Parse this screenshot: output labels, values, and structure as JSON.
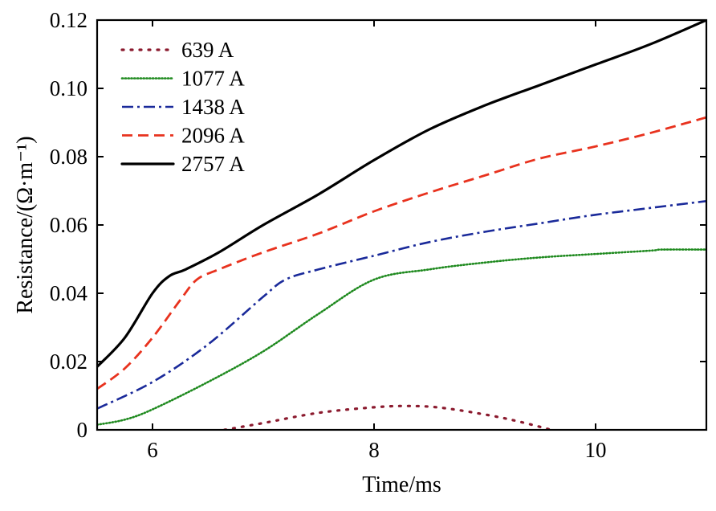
{
  "chart_data": {
    "type": "line",
    "xlabel": "Time/ms",
    "ylabel": "Resistance/(Ω·m⁻¹)",
    "xlim": [
      5.5,
      11
    ],
    "ylim": [
      0,
      0.12
    ],
    "xticks": [
      6,
      8,
      10
    ],
    "yticks": [
      0,
      0.02,
      0.04,
      0.06,
      0.08,
      0.1,
      0.12
    ],
    "ytick_labels": [
      "0",
      "0.02",
      "0.04",
      "0.06",
      "0.08",
      "0.10",
      "0.12"
    ],
    "xtick_labels": [
      "6",
      "8",
      "10"
    ],
    "grid": false,
    "legend_position": "top-left",
    "series": [
      {
        "name": "639 A",
        "color": "#8b1a2e",
        "style": "dotted",
        "x": [
          6.65,
          7.0,
          7.5,
          8.0,
          8.3,
          8.6,
          9.0,
          9.3,
          9.6
        ],
        "y": [
          0.0,
          0.002,
          0.005,
          0.0066,
          0.007,
          0.0065,
          0.0045,
          0.0025,
          0.0
        ]
      },
      {
        "name": "1077 A",
        "color": "#1f8a1f",
        "style": "dense-dotted",
        "x": [
          5.5,
          5.75,
          6.0,
          6.5,
          7.0,
          7.5,
          8.0,
          8.5,
          9.0,
          9.5,
          10.0,
          10.5,
          10.6,
          11.0
        ],
        "y": [
          0.0015,
          0.003,
          0.006,
          0.014,
          0.023,
          0.034,
          0.044,
          0.047,
          0.049,
          0.0505,
          0.0515,
          0.0525,
          0.0528,
          0.0528
        ]
      },
      {
        "name": "1438 A",
        "color": "#1a2a9a",
        "style": "dash-dot",
        "x": [
          5.5,
          6.0,
          6.5,
          7.0,
          7.2,
          7.5,
          8.0,
          8.5,
          9.0,
          9.5,
          10.0,
          10.5,
          11.0
        ],
        "y": [
          0.0062,
          0.014,
          0.025,
          0.039,
          0.044,
          0.047,
          0.051,
          0.055,
          0.058,
          0.0605,
          0.063,
          0.065,
          0.067
        ]
      },
      {
        "name": "2096 A",
        "color": "#e8321e",
        "style": "dashed",
        "x": [
          5.5,
          5.75,
          6.0,
          6.25,
          6.4,
          6.6,
          7.0,
          7.5,
          8.0,
          8.5,
          9.0,
          9.5,
          10.0,
          10.5,
          11.0
        ],
        "y": [
          0.012,
          0.018,
          0.027,
          0.038,
          0.044,
          0.047,
          0.052,
          0.0575,
          0.064,
          0.0695,
          0.0745,
          0.0795,
          0.083,
          0.087,
          0.0915
        ]
      },
      {
        "name": "2757 A",
        "color": "#000000",
        "style": "solid",
        "x": [
          5.5,
          5.75,
          6.0,
          6.15,
          6.3,
          6.6,
          7.0,
          7.5,
          8.0,
          8.5,
          9.0,
          9.5,
          10.0,
          10.5,
          11.0
        ],
        "y": [
          0.0185,
          0.027,
          0.04,
          0.045,
          0.047,
          0.052,
          0.06,
          0.069,
          0.079,
          0.088,
          0.095,
          0.101,
          0.107,
          0.113,
          0.12
        ]
      }
    ]
  }
}
